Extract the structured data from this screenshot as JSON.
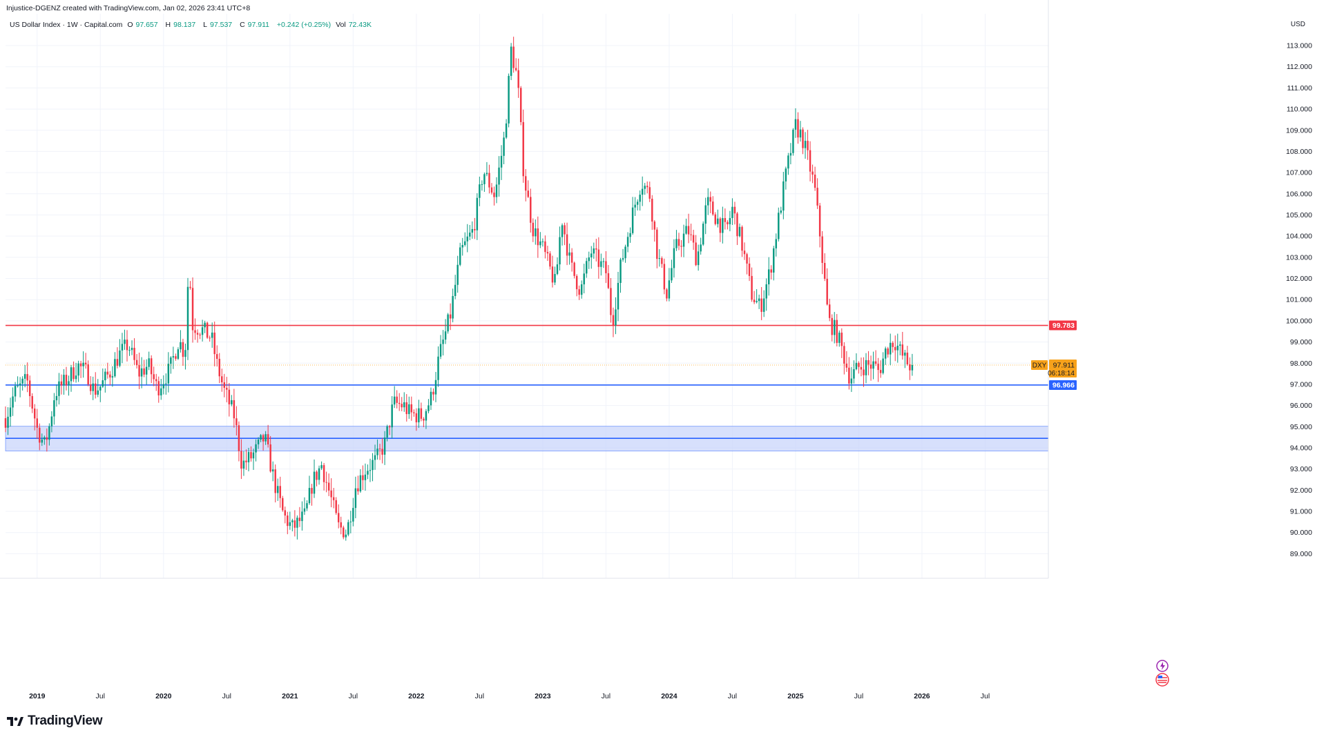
{
  "header": {
    "created_by": "Injustice-DGENZ created with TradingView.com, Jan 02, 2026 23:41 UTC+8"
  },
  "legend": {
    "symbol": "US Dollar Index · 1W · Capital.com",
    "open_label": "O",
    "open": "97.657",
    "high_label": "H",
    "high": "98.137",
    "low_label": "L",
    "low": "97.537",
    "close_label": "C",
    "close": "97.911",
    "change": "+0.242 (+0.25%)",
    "vol_label": "Vol",
    "vol": "72.43K"
  },
  "axis": {
    "currency": "USD"
  },
  "logo": {
    "text": "TradingView"
  },
  "colors": {
    "up": "#089981",
    "down": "#f23645",
    "resistance": "#f23645",
    "support": "#2962ff",
    "zone_fill": "#c9d6fb",
    "last_price": "#f7a21b",
    "grid": "#f0f3fa"
  },
  "chart_data": {
    "type": "candlestick",
    "timeframe": "1W",
    "y_ticks": [
      "89.000",
      "90.000",
      "91.000",
      "92.000",
      "93.000",
      "94.000",
      "95.000",
      "96.000",
      "97.000",
      "98.000",
      "99.000",
      "100.000",
      "101.000",
      "102.000",
      "103.000",
      "104.000",
      "105.000",
      "106.000",
      "107.000",
      "108.000",
      "109.000",
      "110.000",
      "111.000",
      "112.000",
      "113.000"
    ],
    "ylim": [
      88.1,
      114.5
    ],
    "x_ticks": [
      {
        "label": "2019",
        "t": 2019.0,
        "bold": true
      },
      {
        "label": "Jul",
        "t": 2019.5,
        "bold": false
      },
      {
        "label": "2020",
        "t": 2020.0,
        "bold": true
      },
      {
        "label": "Jul",
        "t": 2020.5,
        "bold": false
      },
      {
        "label": "2021",
        "t": 2021.0,
        "bold": true
      },
      {
        "label": "Jul",
        "t": 2021.5,
        "bold": false
      },
      {
        "label": "2022",
        "t": 2022.0,
        "bold": true
      },
      {
        "label": "Jul",
        "t": 2022.5,
        "bold": false
      },
      {
        "label": "2023",
        "t": 2023.0,
        "bold": true
      },
      {
        "label": "Jul",
        "t": 2023.5,
        "bold": false
      },
      {
        "label": "2024",
        "t": 2024.0,
        "bold": true
      },
      {
        "label": "Jul",
        "t": 2024.5,
        "bold": false
      },
      {
        "label": "2025",
        "t": 2025.0,
        "bold": true
      },
      {
        "label": "Jul",
        "t": 2025.5,
        "bold": false
      },
      {
        "label": "2026",
        "t": 2026.0,
        "bold": true
      },
      {
        "label": "Jul",
        "t": 2026.5,
        "bold": false
      }
    ],
    "xlim": [
      2018.75,
      2027.0
    ],
    "resistance": {
      "value": 99.783,
      "label": "99.783"
    },
    "support": {
      "value": 96.966,
      "label": "96.966"
    },
    "zone": {
      "low": 93.85,
      "high": 95.02,
      "mid": 94.45
    },
    "last": {
      "symbol": "DXY",
      "value": 97.911,
      "label": "97.911",
      "countdown": "06:18:14"
    },
    "anchors": [
      [
        2018.75,
        95.4
      ],
      [
        2018.82,
        96.6
      ],
      [
        2018.92,
        97.2
      ],
      [
        2019.0,
        94.9
      ],
      [
        2019.06,
        94.1
      ],
      [
        2019.1,
        95.1
      ],
      [
        2019.14,
        96.6
      ],
      [
        2019.25,
        97.3
      ],
      [
        2019.32,
        97.9
      ],
      [
        2019.4,
        97.5
      ],
      [
        2019.45,
        96.7
      ],
      [
        2019.5,
        96.9
      ],
      [
        2019.58,
        97.6
      ],
      [
        2019.65,
        98.4
      ],
      [
        2019.72,
        98.9
      ],
      [
        2019.8,
        97.5
      ],
      [
        2019.88,
        97.9
      ],
      [
        2019.95,
        96.8
      ],
      [
        2020.05,
        97.7
      ],
      [
        2020.12,
        99.1
      ],
      [
        2020.17,
        98.4
      ],
      [
        2020.2,
        102.8
      ],
      [
        2020.23,
        99.8
      ],
      [
        2020.3,
        99.6
      ],
      [
        2020.38,
        99.2
      ],
      [
        2020.42,
        98.0
      ],
      [
        2020.48,
        96.7
      ],
      [
        2020.56,
        95.5
      ],
      [
        2020.62,
        93.2
      ],
      [
        2020.7,
        93.6
      ],
      [
        2020.8,
        94.5
      ],
      [
        2020.88,
        92.3
      ],
      [
        2020.95,
        90.8
      ],
      [
        2021.02,
        90.2
      ],
      [
        2021.12,
        90.8
      ],
      [
        2021.18,
        92.4
      ],
      [
        2021.25,
        93.2
      ],
      [
        2021.33,
        91.5
      ],
      [
        2021.38,
        90.3
      ],
      [
        2021.45,
        90.0
      ],
      [
        2021.52,
        92.2
      ],
      [
        2021.6,
        93.0
      ],
      [
        2021.68,
        93.4
      ],
      [
        2021.75,
        94.2
      ],
      [
        2021.82,
        96.1
      ],
      [
        2021.9,
        96.0
      ],
      [
        2021.95,
        95.6
      ],
      [
        2022.05,
        95.5
      ],
      [
        2022.12,
        96.4
      ],
      [
        2022.18,
        98.3
      ],
      [
        2022.27,
        100.3
      ],
      [
        2022.35,
        103.2
      ],
      [
        2022.45,
        104.3
      ],
      [
        2022.53,
        107.1
      ],
      [
        2022.62,
        105.9
      ],
      [
        2022.7,
        108.8
      ],
      [
        2022.75,
        112.8
      ],
      [
        2022.8,
        111.4
      ],
      [
        2022.85,
        106.9
      ],
      [
        2022.92,
        104.4
      ],
      [
        2023.0,
        103.4
      ],
      [
        2023.1,
        101.7
      ],
      [
        2023.15,
        104.9
      ],
      [
        2023.22,
        102.6
      ],
      [
        2023.3,
        101.4
      ],
      [
        2023.38,
        103.3
      ],
      [
        2023.5,
        102.3
      ],
      [
        2023.55,
        99.9
      ],
      [
        2023.62,
        102.7
      ],
      [
        2023.72,
        105.3
      ],
      [
        2023.78,
        106.6
      ],
      [
        2023.85,
        105.9
      ],
      [
        2023.9,
        103.4
      ],
      [
        2023.98,
        101.3
      ],
      [
        2024.05,
        103.4
      ],
      [
        2024.15,
        104.3
      ],
      [
        2024.22,
        102.9
      ],
      [
        2024.3,
        105.6
      ],
      [
        2024.38,
        104.8
      ],
      [
        2024.45,
        104.2
      ],
      [
        2024.5,
        105.3
      ],
      [
        2024.58,
        103.5
      ],
      [
        2024.65,
        101.3
      ],
      [
        2024.72,
        100.6
      ],
      [
        2024.8,
        102.4
      ],
      [
        2024.86,
        104.6
      ],
      [
        2024.92,
        106.8
      ],
      [
        2025.0,
        109.2
      ],
      [
        2025.05,
        108.7
      ],
      [
        2025.1,
        107.6
      ],
      [
        2025.15,
        106.3
      ],
      [
        2025.2,
        103.7
      ],
      [
        2025.26,
        100.0
      ],
      [
        2025.32,
        99.5
      ],
      [
        2025.37,
        98.6
      ],
      [
        2025.43,
        97.3
      ],
      [
        2025.5,
        97.8
      ],
      [
        2025.56,
        97.9
      ],
      [
        2025.62,
        97.9
      ],
      [
        2025.66,
        97.6
      ],
      [
        2025.72,
        98.7
      ],
      [
        2025.78,
        99.1
      ],
      [
        2025.85,
        98.3
      ],
      [
        2025.9,
        97.9
      ],
      [
        2025.93,
        97.911
      ]
    ]
  }
}
